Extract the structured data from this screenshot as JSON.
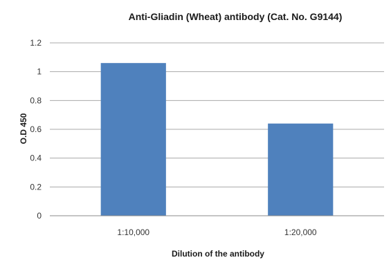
{
  "chart_data": {
    "type": "bar",
    "title": "Anti-Gliadin (Wheat) antibody  (Cat. No. G9144)",
    "xlabel": "Dilution of the antibody",
    "ylabel": "O.D 450",
    "categories": [
      "1:10,000",
      "1:20,000"
    ],
    "values": [
      1.06,
      0.64
    ],
    "ylim": [
      0,
      1.2
    ],
    "yticks": [
      "0",
      "0.2",
      "0.4",
      "0.6",
      "0.8",
      "1",
      "1.2"
    ],
    "grid": true,
    "legend": "none",
    "bar_color": "#4f81bd"
  }
}
